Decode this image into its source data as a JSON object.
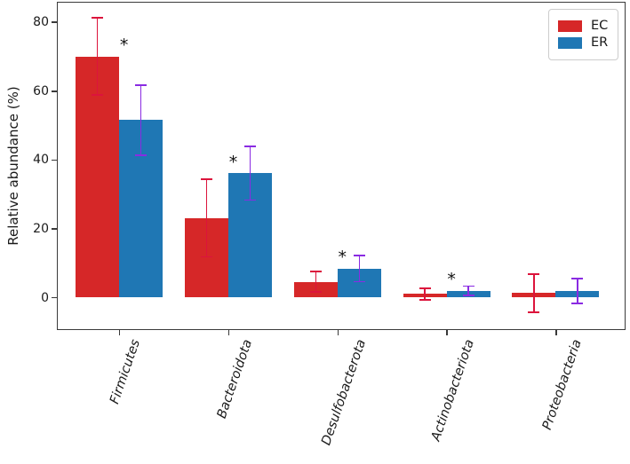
{
  "chart_data": {
    "type": "bar",
    "bar_style": "grouped",
    "title": "",
    "xlabel": "",
    "ylabel": "Relative abundance (%)",
    "categories": [
      "Firmicutes",
      "Bacteroidota",
      "Desulfobacterota",
      "Actinobacteriota",
      "Proteobacteria"
    ],
    "series": [
      {
        "name": "EC",
        "color": "#d62728",
        "error_color": "#dc143c",
        "values": [
          70,
          23,
          4.5,
          1.0,
          1.2
        ],
        "errors": [
          11.5,
          11.5,
          3.2,
          1.9,
          5.8
        ]
      },
      {
        "name": "ER",
        "color": "#1f77b4",
        "error_color": "#8a2be2",
        "values": [
          51.5,
          36,
          8.3,
          1.9,
          1.8
        ],
        "errors": [
          10.4,
          8.0,
          4.0,
          1.6,
          3.9
        ]
      }
    ],
    "significance_marker": "*",
    "significant_categories": [
      "Firmicutes",
      "Bacteroidota",
      "Desulfobacterota",
      "Actinobacteriota"
    ],
    "yticks": [
      0,
      20,
      40,
      60,
      80
    ],
    "ylim": [
      -9,
      85.6
    ],
    "grid": false,
    "legend_position": "upper right"
  }
}
